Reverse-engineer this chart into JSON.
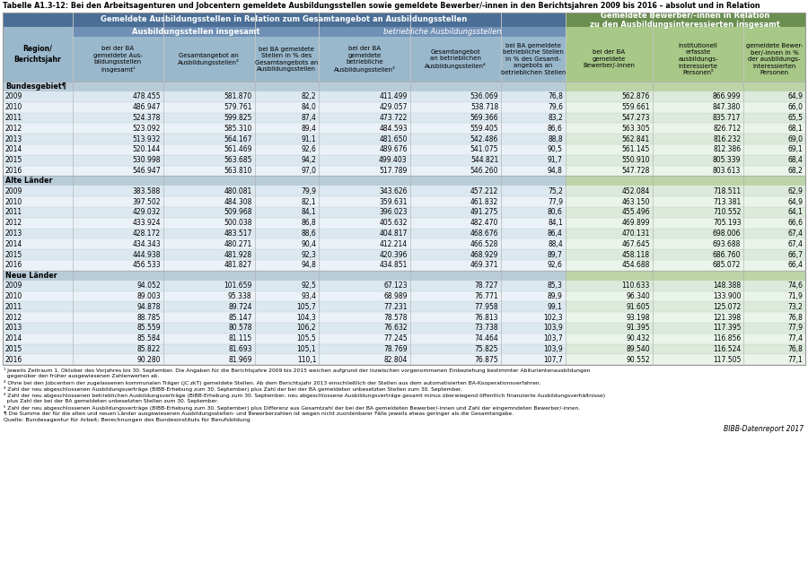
{
  "title": "Tabelle A1.3-12: Bei den Arbeitsagenturen und Jobcentern gemeldete Ausbildungsstellen sowie gemeldete Bewerber/-innen in den Berichtsjahren 2009 bis 2016 – absolut und in Relation",
  "header_row1_left": "Gemeldete Ausbildungsstellen in Relation zum Gesamtangebot an Ausbildungsstellen",
  "header_row1_right": "Gemeldete Bewerber/-innen in Relation\nzu den Ausbildungsinteressierten insgesamt",
  "header_row2_left1": "Ausbildungsstellen insgesamt",
  "header_row2_left2": "betriebliche Ausbildungsstellen",
  "col_header_texts": [
    "Region/\nBerichtsjahr",
    "bei der BA\ngemeldete Aus-\nbildungsstellen\ninsgesamt¹",
    "Gesamtangebot an\nAusbildungsstellen²",
    "bei BA gemeldete\nStellen in % des\nGesamtangebots an\nAusbildungsstellen",
    "bei der BA\ngemeldete\nbetriebliche\nAusbildungsstellen³",
    "Gesamtangebot\nan betrieblichen\nAusbildungsstellen⁴",
    "bei BA gemeldete\nbetriebliche Stellen\nin % des Gesamt-\nangebots an\nbetrieblichen Stellen",
    "bei der BA\ngemeldete\nBewerber/-innen",
    "institutionell\nerfasste\nausbildungs-\ninteressierte\nPersonen⁵",
    "gemeldete Bewer-\nber/-innen in %\nder ausbildungs-\ninteressierten\nPersonen"
  ],
  "sections": [
    {
      "label": "Bundesgebiet¶",
      "rows": [
        [
          "2009",
          "478.455",
          "581.870",
          "82,2",
          "411.499",
          "536.069",
          "76,8",
          "562.876",
          "866.999",
          "64,9"
        ],
        [
          "2010",
          "486.947",
          "579.761",
          "84,0",
          "429.057",
          "538.718",
          "79,6",
          "559.661",
          "847.380",
          "66,0"
        ],
        [
          "2011",
          "524.378",
          "599.825",
          "87,4",
          "473.722",
          "569.366",
          "83,2",
          "547.273",
          "835.717",
          "65,5"
        ],
        [
          "2012",
          "523.092",
          "585.310",
          "89,4",
          "484.593",
          "559.405",
          "86,6",
          "563.305",
          "826.712",
          "68,1"
        ],
        [
          "2013",
          "513.932",
          "564.167",
          "91,1",
          "481.650",
          "542.486",
          "88,8",
          "562.841",
          "816.232",
          "69,0"
        ],
        [
          "2014",
          "520.144",
          "561.469",
          "92,6",
          "489.676",
          "541.075",
          "90,5",
          "561.145",
          "812.386",
          "69,1"
        ],
        [
          "2015",
          "530.998",
          "563.685",
          "94,2",
          "499.403",
          "544.821",
          "91,7",
          "550.910",
          "805.339",
          "68,4"
        ],
        [
          "2016",
          "546.947",
          "563.810",
          "97,0",
          "517.789",
          "546.260",
          "94,8",
          "547.728",
          "803.613",
          "68,2"
        ]
      ]
    },
    {
      "label": "Alte Länder",
      "rows": [
        [
          "2009",
          "383.588",
          "480.081",
          "79,9",
          "343.626",
          "457.212",
          "75,2",
          "452.084",
          "718.511",
          "62,9"
        ],
        [
          "2010",
          "397.502",
          "484.308",
          "82,1",
          "359.631",
          "461.832",
          "77,9",
          "463.150",
          "713.381",
          "64,9"
        ],
        [
          "2011",
          "429.032",
          "509.968",
          "84,1",
          "396.023",
          "491.275",
          "80,6",
          "455.496",
          "710.552",
          "64,1"
        ],
        [
          "2012",
          "433.924",
          "500.038",
          "86,8",
          "405.632",
          "482.470",
          "84,1",
          "469.899",
          "705.193",
          "66,6"
        ],
        [
          "2013",
          "428.172",
          "483.517",
          "88,6",
          "404.817",
          "468.676",
          "86,4",
          "470.131",
          "698.006",
          "67,4"
        ],
        [
          "2014",
          "434.343",
          "480.271",
          "90,4",
          "412.214",
          "466.528",
          "88,4",
          "467.645",
          "693.688",
          "67,4"
        ],
        [
          "2015",
          "444.938",
          "481.928",
          "92,3",
          "420.396",
          "468.929",
          "89,7",
          "458.118",
          "686.760",
          "66,7"
        ],
        [
          "2016",
          "456.533",
          "481.827",
          "94,8",
          "434.851",
          "469.371",
          "92,6",
          "454.688",
          "685.072",
          "66,4"
        ]
      ]
    },
    {
      "label": "Neue Länder",
      "rows": [
        [
          "2009",
          "94.052",
          "101.659",
          "92,5",
          "67.123",
          "78.727",
          "85,3",
          "110.633",
          "148.388",
          "74,6"
        ],
        [
          "2010",
          "89.003",
          "95.338",
          "93,4",
          "68.989",
          "76.771",
          "89,9",
          "96.340",
          "133.900",
          "71,9"
        ],
        [
          "2011",
          "94.878",
          "89.724",
          "105,7",
          "77.231",
          "77.958",
          "99,1",
          "91.605",
          "125.072",
          "73,2"
        ],
        [
          "2012",
          "88.785",
          "85.147",
          "104,3",
          "78.578",
          "76.813",
          "102,3",
          "93.198",
          "121.398",
          "76,8"
        ],
        [
          "2013",
          "85.559",
          "80.578",
          "106,2",
          "76.632",
          "73.738",
          "103,9",
          "91.395",
          "117.395",
          "77,9"
        ],
        [
          "2014",
          "85.584",
          "81.115",
          "105,5",
          "77.245",
          "74.464",
          "103,7",
          "90.432",
          "116.856",
          "77,4"
        ],
        [
          "2015",
          "85.822",
          "81.693",
          "105,1",
          "78.769",
          "75.825",
          "103,9",
          "89.540",
          "116.524",
          "76,8"
        ],
        [
          "2016",
          "90.280",
          "81.969",
          "110,1",
          "82.804",
          "76.875",
          "107,7",
          "90.552",
          "117.505",
          "77,1"
        ]
      ]
    }
  ],
  "footnotes": [
    "¹ Jeweils Zeitraum 1. Oktober des Vorjahres bis 30. September. Die Angaben für die Berichtsjahre 2009 bis 2015 weichen aufgrund der inzwischen vorgenommenen Einbeziehung bestimmter Abiturientenausbildungen",
    "  gegenüber den früher ausgewiesenen Zahlenwerten ab.",
    "² Ohne bei den Jobcentern der zugelassenen kommunalen Träger (jC zkT) gemeldete Stellen. Ab dem Berichtsjahr 2013 einschließlich der Stellen aus dem automatisierten BA-Kooperationsverfahren.",
    "³ Zahl der neu abgeschlossenen Ausbildungsverträge (BIBB-Erhebung zum 30. September) plus Zahl der bei der BA gemeldeten unbesetzten Stellen zum 30. September.",
    "⁴ Zahl der neu abgeschlossenen betrieblichen Ausbildungsverträge (BIBB-Erhebung zum 30. September, neu abgeschlossene Ausbildungsverträge gesamt minus überwiegend öffentlich finanzierte Ausbildungsverhältnisse)",
    "  plus Zahl der bei der BA gemeldeten unbesetzten Stellen zum 30. September.",
    "⁵ Zahl der neu abgeschlossenen Ausbildungsverträge (BIBB-Erhebung zum 30. September) plus Differenz aus Gesamtzahl der bei der BA gemeldeten Bewerber/-innen und Zahl der eingemndeten Bewerber/-innen.",
    "¶ Die Summe der für die alten und neuen Länder ausgewiesenen Ausbildungsstellen- und Bewerberzahlen ist wegen nicht zuordenbarer Fälle jeweils etwas geringer als die Gesamtangabe.",
    "Quelle: Bundesagentur für Arbeit; Berechnungen des Bundesinstituts für Berufsbildung",
    "BIBB-Datenreport 2017"
  ],
  "col_widths_rel": [
    52,
    68,
    68,
    48,
    68,
    68,
    48,
    65,
    68,
    46
  ],
  "header_top_left_color": "#4a6e96",
  "header_top_right_color": "#6a8f50",
  "header_mid_left_color": "#7090b5",
  "header_mid_right_color": "#88ae6a",
  "col_header_left_color": "#9ab8cc",
  "col_header_right_color": "#a8c888",
  "section_label_left_color": "#b8ccd8",
  "section_label_right_color": "#bcd4a8",
  "row_even_left": "#dce8f0",
  "row_odd_left": "#eaf2f8",
  "row_even_right": "#dceadc",
  "row_odd_right": "#eaf4ea",
  "border_color": "#999999",
  "line_color": "#aaaaaa"
}
